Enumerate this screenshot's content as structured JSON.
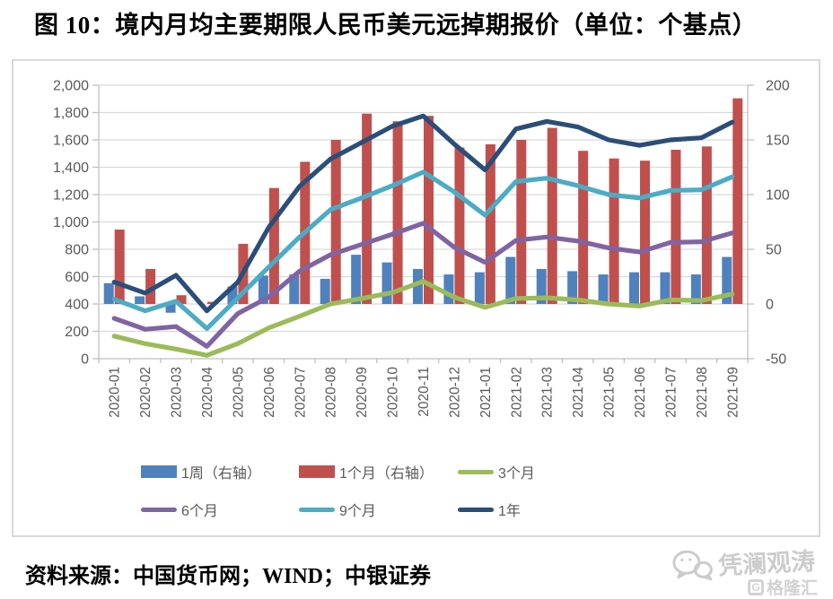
{
  "title": "图 10：境内月均主要期限人民币美元远掉期报价（单位：个基点）",
  "source": "资料来源：中国货币网；WIND；中银证券",
  "watermark": {
    "wechat_name": "凭澜观涛",
    "logo_text": "格隆汇",
    "logo_letter": "G"
  },
  "colors": {
    "bar_1w": "#4F81BD",
    "bar_1m": "#C0504D",
    "line_3m": "#9BBB59",
    "line_6m": "#8064A2",
    "line_9m": "#4BACC6",
    "line_1y": "#2A4E79",
    "gridline": "#D9D9D9",
    "axis": "#BFBFBF",
    "tick_text": "#595959"
  },
  "chart_data": {
    "type": "bar",
    "subtype": "combo-bar-line-dual-axis",
    "categories": [
      "2020-01",
      "2020-02",
      "2020-03",
      "2020-04",
      "2020-05",
      "2020-06",
      "2020-07",
      "2020-08",
      "2020-09",
      "2020-10",
      "2020-11",
      "2020-12",
      "2021-01",
      "2021-02",
      "2021-03",
      "2021-04",
      "2021-05",
      "2021-06",
      "2021-07",
      "2021-08",
      "2021-09"
    ],
    "series": [
      {
        "name": "1周（右轴）",
        "type": "bar",
        "axis": "right",
        "color": "#4F81BD",
        "values": [
          19,
          7,
          -8,
          0,
          16,
          26,
          27,
          23,
          45,
          38,
          32,
          27,
          29,
          43,
          32,
          30,
          27,
          29,
          29,
          27,
          43
        ]
      },
      {
        "name": "1个月（右轴）",
        "type": "bar",
        "axis": "right",
        "color": "#C0504D",
        "values": [
          68,
          32,
          8,
          2,
          55,
          106,
          130,
          150,
          174,
          167,
          172,
          143,
          146,
          150,
          161,
          140,
          133,
          131,
          141,
          144,
          188
        ]
      },
      {
        "name": "3个月",
        "type": "line",
        "axis": "left",
        "color": "#9BBB59",
        "values": [
          165,
          110,
          70,
          25,
          110,
          225,
          310,
          400,
          440,
          483,
          565,
          450,
          375,
          440,
          445,
          430,
          400,
          385,
          430,
          425,
          473
        ]
      },
      {
        "name": "6个月",
        "type": "line",
        "axis": "left",
        "color": "#8064A2",
        "values": [
          295,
          215,
          235,
          90,
          330,
          450,
          640,
          760,
          835,
          910,
          990,
          815,
          705,
          865,
          890,
          860,
          810,
          780,
          850,
          855,
          920
        ]
      },
      {
        "name": "9个月",
        "type": "line",
        "axis": "left",
        "color": "#4BACC6",
        "values": [
          435,
          350,
          420,
          220,
          445,
          670,
          890,
          1090,
          1175,
          1265,
          1365,
          1220,
          1050,
          1295,
          1320,
          1265,
          1200,
          1175,
          1230,
          1235,
          1330
        ]
      },
      {
        "name": "1年",
        "type": "line",
        "axis": "left",
        "color": "#2A4E79",
        "values": [
          560,
          480,
          610,
          350,
          560,
          960,
          1260,
          1460,
          1580,
          1700,
          1775,
          1570,
          1380,
          1680,
          1735,
          1695,
          1600,
          1560,
          1600,
          1615,
          1730
        ]
      }
    ],
    "left_axis": {
      "min": 0,
      "max": 2000,
      "step": 200,
      "tick_labels": [
        "0",
        "200",
        "400",
        "600",
        "800",
        "1,000",
        "1,200",
        "1,400",
        "1,600",
        "1,800",
        "2,000"
      ]
    },
    "right_axis": {
      "min": -50,
      "max": 200,
      "step": 50,
      "tick_labels": [
        "-50",
        "0",
        "50",
        "100",
        "150",
        "200"
      ]
    },
    "grid": true,
    "legend_position": "bottom"
  }
}
